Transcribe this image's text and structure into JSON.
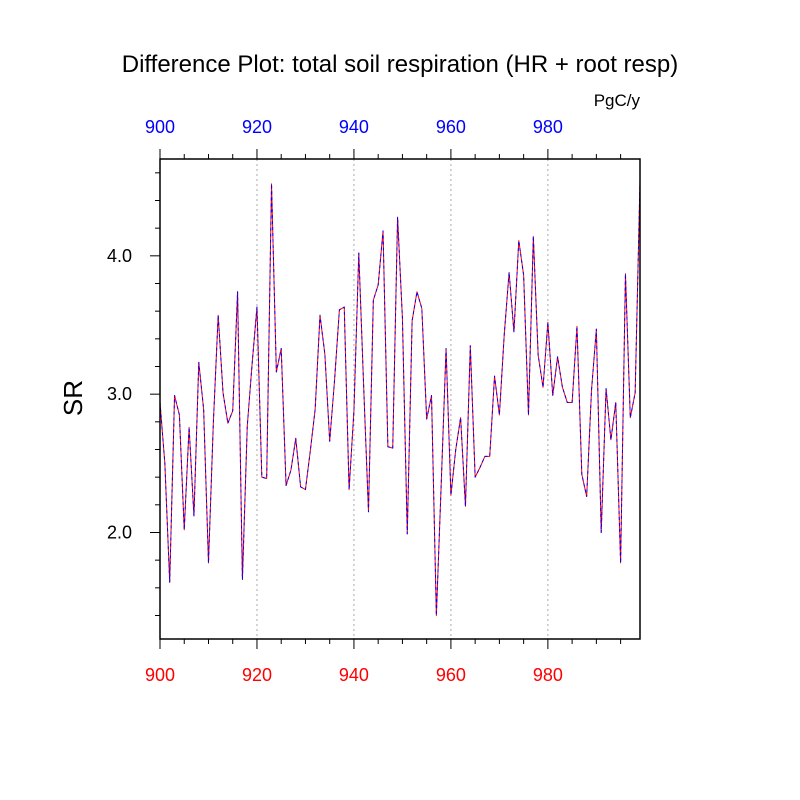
{
  "chart_data": {
    "type": "line",
    "title": "Difference Plot: total soil respiration (HR + root resp)",
    "units": "PgC/y",
    "ylabel": "SR",
    "xlabel": "",
    "xlim": [
      900,
      999
    ],
    "ylim": [
      1.23,
      4.7
    ],
    "x_ticks": [
      900,
      920,
      940,
      960,
      980
    ],
    "y_ticks": [
      2.0,
      3.0,
      4.0
    ],
    "y_tick_labels": [
      "2.0",
      "3.0",
      "4.0"
    ],
    "grid": "vertical dotted at x ticks",
    "colors": {
      "series_a": "#ff0000",
      "series_b": "#0000ff",
      "bottom_tick_labels": "#ff0000",
      "top_tick_labels": "#0000ff"
    },
    "x": [
      900,
      901,
      902,
      903,
      904,
      905,
      906,
      907,
      908,
      909,
      910,
      911,
      912,
      913,
      914,
      915,
      916,
      917,
      918,
      919,
      920,
      921,
      922,
      923,
      924,
      925,
      926,
      927,
      928,
      929,
      930,
      931,
      932,
      933,
      934,
      935,
      936,
      937,
      938,
      939,
      940,
      941,
      942,
      943,
      944,
      945,
      946,
      947,
      948,
      949,
      950,
      951,
      952,
      953,
      954,
      955,
      956,
      957,
      958,
      959,
      960,
      961,
      962,
      963,
      964,
      965,
      966,
      967,
      968,
      969,
      970,
      971,
      972,
      973,
      974,
      975,
      976,
      977,
      978,
      979,
      980,
      981,
      982,
      983,
      984,
      985,
      986,
      987,
      988,
      989,
      990,
      991,
      992,
      993,
      994,
      995,
      996,
      997,
      998,
      999
    ],
    "series": [
      {
        "values": [
          2.94,
          2.5,
          1.64,
          2.99,
          2.85,
          2.02,
          2.76,
          2.12,
          3.23,
          2.89,
          1.78,
          2.79,
          3.57,
          3.01,
          2.79,
          2.88,
          3.74,
          1.66,
          2.77,
          3.22,
          3.63,
          2.4,
          2.39,
          4.52,
          3.16,
          3.33,
          2.34,
          2.45,
          2.68,
          2.33,
          2.31,
          2.59,
          2.89,
          3.57,
          3.29,
          2.66,
          3.1,
          3.61,
          3.63,
          2.31,
          2.88,
          4.02,
          3.06,
          2.15,
          3.68,
          3.79,
          4.18,
          2.62,
          2.61,
          4.28,
          3.55,
          1.99,
          3.53,
          3.74,
          3.62,
          2.82,
          2.99,
          1.4,
          2.35,
          3.33,
          2.27,
          2.6,
          2.83,
          2.19,
          3.35,
          2.4,
          2.47,
          2.55,
          2.55,
          3.13,
          2.85,
          3.43,
          3.88,
          3.45,
          4.11,
          3.86,
          2.85,
          4.14,
          3.28,
          3.05,
          3.52,
          2.99,
          3.27,
          3.05,
          2.94,
          2.94,
          3.49,
          2.42,
          2.26,
          3.03,
          3.47,
          2.0,
          3.04,
          2.67,
          2.94,
          1.78,
          3.87,
          2.83,
          3.01,
          4.54
        ]
      },
      {
        "values": [
          2.94,
          2.5,
          1.64,
          2.99,
          2.85,
          2.02,
          2.76,
          2.12,
          3.23,
          2.89,
          1.78,
          2.79,
          3.57,
          3.01,
          2.79,
          2.88,
          3.74,
          1.66,
          2.77,
          3.22,
          3.63,
          2.4,
          2.39,
          4.52,
          3.16,
          3.33,
          2.34,
          2.45,
          2.68,
          2.33,
          2.31,
          2.59,
          2.89,
          3.57,
          3.29,
          2.66,
          3.1,
          3.61,
          3.63,
          2.31,
          2.88,
          4.02,
          3.06,
          2.15,
          3.68,
          3.79,
          4.18,
          2.62,
          2.61,
          4.28,
          3.55,
          1.99,
          3.53,
          3.74,
          3.62,
          2.82,
          2.99,
          1.4,
          2.35,
          3.33,
          2.27,
          2.6,
          2.83,
          2.19,
          3.35,
          2.4,
          2.47,
          2.55,
          2.55,
          3.13,
          2.85,
          3.43,
          3.88,
          3.45,
          4.11,
          3.86,
          2.85,
          4.14,
          3.28,
          3.05,
          3.52,
          2.99,
          3.27,
          3.05,
          2.94,
          2.94,
          3.49,
          2.42,
          2.26,
          3.03,
          3.47,
          2.0,
          3.04,
          2.67,
          2.94,
          1.78,
          3.87,
          2.83,
          3.01,
          4.54
        ]
      }
    ]
  }
}
